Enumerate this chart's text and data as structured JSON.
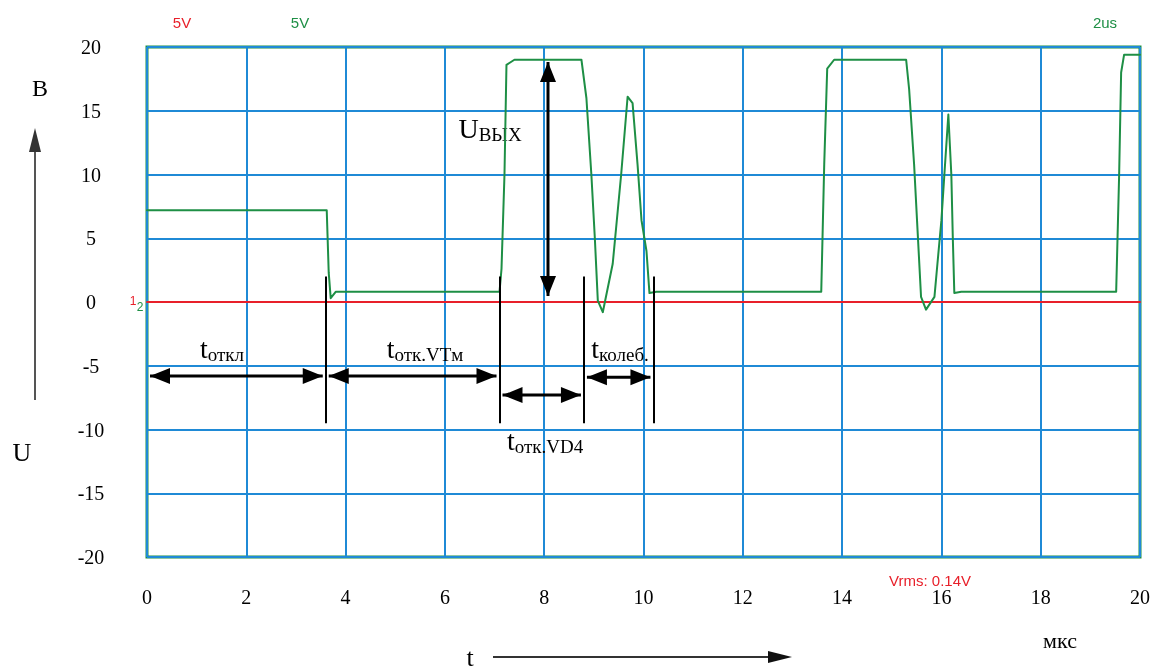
{
  "chart_data": {
    "type": "line",
    "xlabel": "t",
    "ylabel": "U",
    "xlim": [
      0,
      20
    ],
    "xticks": [
      0,
      2,
      4,
      6,
      8,
      10,
      12,
      14,
      16,
      18,
      20
    ],
    "ylim": [
      -20,
      20
    ],
    "yticks": [
      -20,
      -15,
      -10,
      -5,
      0,
      5,
      10,
      15,
      20
    ],
    "grid": true,
    "marker": "none",
    "series": [
      {
        "color": "#e8202a",
        "x": [
          0,
          20
        ],
        "values": [
          0,
          0
        ]
      },
      {
        "color": "#1e8f45",
        "x": [
          0,
          3.62,
          3.66,
          3.7,
          3.8,
          7.1,
          7.14,
          7.2,
          7.24,
          7.4,
          8.75,
          8.85,
          8.95,
          9.02,
          9.08,
          9.18,
          9.38,
          9.55,
          9.68,
          9.78,
          9.88,
          9.96,
          10.06,
          10.12,
          10.26,
          13.58,
          13.64,
          13.7,
          13.84,
          15.29,
          15.35,
          15.45,
          15.52,
          15.59,
          15.69,
          15.86,
          15.92,
          16.0,
          16.06,
          16.14,
          16.2,
          16.23,
          16.26,
          16.4,
          19.52,
          19.58,
          19.62,
          19.68,
          20
        ],
        "values": [
          7.2,
          7.2,
          2.3,
          0.3,
          0.8,
          0.8,
          2.6,
          10,
          18.6,
          19,
          19,
          16,
          10,
          5,
          0.1,
          -0.8,
          3,
          10,
          16.1,
          15.6,
          10.8,
          6.4,
          4,
          0.7,
          0.8,
          0.8,
          10.8,
          18.3,
          19,
          19,
          16.7,
          10.8,
          5.6,
          0.4,
          -0.6,
          0.4,
          3,
          6.4,
          10,
          14.7,
          10,
          5,
          0.7,
          0.8,
          0.8,
          10,
          18,
          19.4,
          19.4
        ]
      }
    ],
    "ref_lines": [
      {
        "axis": "x",
        "value": 3.6,
        "color": "#000000"
      },
      {
        "axis": "x",
        "value": 7.1,
        "color": "#000000"
      },
      {
        "axis": "x",
        "value": 8.8,
        "color": "#000000"
      },
      {
        "axis": "x",
        "value": 10.2,
        "color": "#000000"
      }
    ],
    "annotations": [
      "5V",
      "5V",
      "2us",
      "Vrms: 0.14V",
      "В",
      "мкс",
      "1",
      "2",
      "U$_{ВЫХ}$",
      "t$_{откл}$",
      "t$_{отк.VTм}$",
      {
        "text": "t$_{отк.VD4}$",
        "x": 8.8,
        "y": -7.3
      },
      {
        "text": "t$_{колеб.}$",
        "x": 10.2,
        "y": -5.9
      }
    ]
  }
}
